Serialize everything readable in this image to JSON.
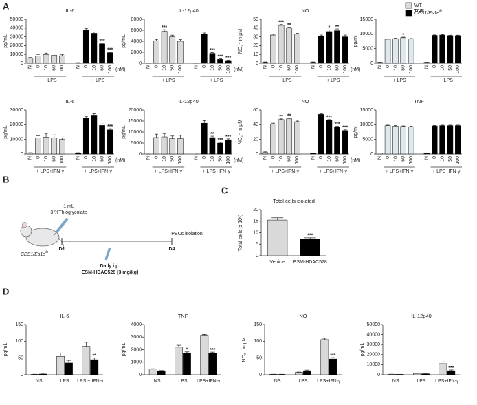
{
  "panel_labels": [
    "A",
    "B",
    "C",
    "D"
  ],
  "legend": [
    {
      "name": "WT",
      "color": "#d9d9d9"
    },
    {
      "name": "CES1/Es1e",
      "name_sup": "lo",
      "color": "#000000"
    }
  ],
  "diagram": {
    "dose": "1 mL",
    "reagent": "3 %Thioglycolate",
    "day_start": "D1",
    "day_end": "D4",
    "endpoint": "PECs isolation",
    "treatment": "Daily i.p.",
    "drug": "ESM-HDAC528 [3 mg/kg]",
    "mouse_label": {
      "text": "CES1/Es1e",
      "sup": "lo"
    }
  },
  "chart_data": [
    {
      "type": "grouped",
      "title": "IL-6",
      "y_label": "pg/mL",
      "ylim": [
        0,
        50000
      ],
      "yticks": [
        0,
        10000,
        20000,
        30000,
        40000,
        50000
      ],
      "categories": [
        "N",
        "0",
        "10",
        "50",
        "100"
      ],
      "unit": "(nM)",
      "group_labels": [
        "+ LPS",
        "+ LPS"
      ],
      "series": [
        {
          "color": "#d9d9d9",
          "values": [
            6000,
            8000,
            10000,
            9000,
            8500
          ],
          "errors": [
            500,
            2000,
            1500,
            1500,
            1500
          ]
        },
        {
          "color": "#000000",
          "values": [
            500,
            38000,
            34000,
            22000,
            12000
          ],
          "errors": [
            200,
            1500,
            1500,
            800,
            600
          ],
          "stars": [
            null,
            null,
            null,
            "***",
            "***"
          ]
        }
      ]
    },
    {
      "type": "grouped",
      "title": "IL-12p40",
      "y_label": "pg/mL",
      "ylim": [
        0,
        8000
      ],
      "yticks": [
        0,
        2000,
        4000,
        6000,
        8000
      ],
      "categories": [
        "N",
        "0",
        "10",
        "50",
        "100"
      ],
      "unit": "(nM)",
      "group_labels": [
        "+ LPS",
        "+ LPS"
      ],
      "series": [
        {
          "color": "#d9d9d9",
          "values": [
            50,
            4100,
            5800,
            4800,
            4000
          ],
          "errors": [
            20,
            250,
            300,
            300,
            300
          ],
          "stars": [
            null,
            null,
            "***",
            null,
            null
          ]
        },
        {
          "color": "#000000",
          "values": [
            50,
            5300,
            1800,
            700,
            500
          ],
          "errors": [
            20,
            200,
            150,
            100,
            80
          ],
          "stars": [
            null,
            null,
            "***",
            "***",
            "***"
          ]
        }
      ]
    },
    {
      "type": "grouped",
      "title": "NO",
      "y_label": "NO₂⁻ in µM",
      "ylim": [
        0,
        50
      ],
      "yticks": [
        0,
        10,
        20,
        30,
        40,
        50
      ],
      "categories": [
        "N",
        "0",
        "10",
        "50",
        "100"
      ],
      "unit": "(nM)",
      "group_labels": [
        "+ LPS",
        "+ LPS"
      ],
      "series": [
        {
          "color": "#d9d9d9",
          "values": [
            1,
            32,
            43,
            40,
            33
          ],
          "errors": [
            0.5,
            1,
            1,
            1,
            1
          ],
          "stars": [
            null,
            null,
            "***",
            "**",
            null
          ]
        },
        {
          "color": "#000000",
          "values": [
            1,
            31,
            36,
            37,
            30
          ],
          "errors": [
            0.5,
            1,
            2,
            2,
            2
          ],
          "stars": [
            null,
            null,
            "*",
            "**",
            null
          ]
        }
      ]
    },
    {
      "type": "grouped",
      "title": "TNF",
      "y_label": "pg/ml",
      "ylim": [
        0,
        15000
      ],
      "yticks": [
        0,
        5000,
        10000,
        15000
      ],
      "categories": [
        "N",
        "0",
        "10",
        "50",
        "100"
      ],
      "group_labels": [
        "+ LPS",
        "+ LPS"
      ],
      "series": [
        {
          "color": "#dfe8ec",
          "values": [
            300,
            8200,
            8400,
            8700,
            8300
          ],
          "errors": [
            50,
            150,
            150,
            200,
            150
          ],
          "stars": [
            null,
            null,
            null,
            "*",
            null
          ]
        },
        {
          "color": "#000000",
          "values": [
            300,
            9500,
            9600,
            9400,
            9400
          ],
          "errors": [
            50,
            150,
            150,
            150,
            150
          ]
        }
      ]
    },
    {
      "type": "grouped",
      "title": "IL-6",
      "y_label": "pg/mL",
      "ylim": [
        0,
        30000
      ],
      "yticks": [
        0,
        10000,
        20000,
        30000
      ],
      "categories": [
        "N",
        "0",
        "10",
        "50",
        "100"
      ],
      "unit": "(nM)",
      "group_labels": [
        "+ LPS+IFN-γ",
        "+ LPS+IFN-γ"
      ],
      "series": [
        {
          "color": "#d9d9d9",
          "values": [
            800,
            11000,
            11500,
            11000,
            10000
          ],
          "errors": [
            100,
            1500,
            2500,
            2000,
            1000
          ]
        },
        {
          "color": "#000000",
          "values": [
            800,
            24500,
            26500,
            19500,
            16500
          ],
          "errors": [
            100,
            1000,
            1000,
            1000,
            800
          ],
          "stars": [
            null,
            null,
            null,
            null,
            "***"
          ]
        }
      ]
    },
    {
      "type": "grouped",
      "title": "IL-12p40",
      "y_label": "pg/mL",
      "ylim": [
        0,
        20000
      ],
      "yticks": [
        0,
        5000,
        10000,
        15000,
        20000
      ],
      "categories": [
        "N",
        "0",
        "10",
        "50",
        "100"
      ],
      "unit": "(nM)",
      "group_labels": [
        "+ LPS+IFN-γ",
        "+ LPS+IFN-γ"
      ],
      "series": [
        {
          "color": "#d9d9d9",
          "values": [
            0,
            7500,
            7800,
            7000,
            7000
          ],
          "errors": [
            0,
            1500,
            1500,
            1200,
            1500
          ]
        },
        {
          "color": "#000000",
          "values": [
            0,
            14000,
            7500,
            5000,
            6500
          ],
          "errors": [
            0,
            1200,
            600,
            400,
            400
          ],
          "stars": [
            null,
            null,
            "**",
            "***",
            "***"
          ]
        }
      ]
    },
    {
      "type": "grouped",
      "title": "NO",
      "y_label": "NO₂⁻ in µM",
      "ylim": [
        0,
        60
      ],
      "yticks": [
        0,
        20,
        40,
        60
      ],
      "categories": [
        "N",
        "0",
        "10",
        "50",
        "100"
      ],
      "unit": "(nM)",
      "group_labels": [
        "+ LPS+IFN-γ",
        "+ LPS+IFN-γ"
      ],
      "series": [
        {
          "color": "#d9d9d9",
          "values": [
            2,
            41,
            47,
            48,
            44
          ],
          "errors": [
            1,
            1,
            1,
            1,
            1
          ],
          "stars": [
            null,
            null,
            "**",
            "**",
            null
          ]
        },
        {
          "color": "#000000",
          "values": [
            1,
            54,
            46,
            37,
            32
          ],
          "errors": [
            0.5,
            1,
            1,
            1,
            1
          ],
          "stars": [
            null,
            null,
            "***",
            "***",
            "***"
          ]
        }
      ]
    },
    {
      "type": "grouped",
      "title": "TNF",
      "y_label": "pg/ml",
      "ylim": [
        0,
        15000
      ],
      "yticks": [
        0,
        5000,
        10000,
        15000
      ],
      "categories": [
        "N",
        "0",
        "10",
        "50",
        "100"
      ],
      "group_labels": [
        "+ LPS+IFN-γ",
        "+ LPS+IFN-γ"
      ],
      "series": [
        {
          "color": "#dfe8ec",
          "values": [
            300,
            9700,
            9500,
            9400,
            9300
          ],
          "errors": [
            50,
            150,
            200,
            200,
            200
          ]
        },
        {
          "color": "#000000",
          "values": [
            300,
            9600,
            9700,
            9700,
            9700
          ],
          "errors": [
            50,
            150,
            150,
            150,
            150
          ]
        }
      ]
    },
    {
      "type": "bar",
      "title": "Total cells isolated",
      "y_label": "Total cells (x 10⁵)",
      "ylim": [
        0,
        20
      ],
      "yticks": [
        0,
        5,
        10,
        15,
        20
      ],
      "categories": [
        "Vehicle",
        "ESM-HDAC528"
      ],
      "colors": [
        "#d9d9d9",
        "#000000"
      ],
      "values": [
        15.5,
        7.2
      ],
      "errors": [
        1,
        0.6
      ],
      "stars": [
        null,
        "***"
      ]
    },
    {
      "type": "paired",
      "title": "IL-6",
      "y_label": "pg/mL",
      "ylim": [
        0,
        150
      ],
      "yticks": [
        0,
        50,
        100,
        150
      ],
      "categories": [
        "NS",
        "LPS",
        "LPS + IFN-γ"
      ],
      "series": [
        {
          "color": "#d9d9d9",
          "values": [
            1,
            55,
            85
          ],
          "errors": [
            0.5,
            10,
            12
          ]
        },
        {
          "color": "#000000",
          "values": [
            2,
            35,
            45
          ],
          "errors": [
            0.5,
            8,
            5
          ],
          "stars": [
            null,
            null,
            "**"
          ]
        }
      ]
    },
    {
      "type": "paired",
      "title": "TNF",
      "y_label": "pg/mL",
      "ylim": [
        0,
        4000
      ],
      "yticks": [
        0,
        1000,
        2000,
        3000,
        4000
      ],
      "categories": [
        "NS",
        "LPS",
        "LPS+IFN-γ"
      ],
      "series": [
        {
          "color": "#d9d9d9",
          "values": [
            450,
            2200,
            3150
          ],
          "errors": [
            30,
            150,
            60
          ]
        },
        {
          "color": "#000000",
          "values": [
            320,
            1700,
            1700
          ],
          "errors": [
            20,
            120,
            100
          ],
          "stars": [
            null,
            "*",
            "***"
          ]
        }
      ]
    },
    {
      "type": "paired",
      "title": "NO",
      "y_label": "NO₂⁻ in µM",
      "ylim": [
        0,
        150
      ],
      "yticks": [
        0,
        50,
        100,
        150
      ],
      "categories": [
        "NS",
        "LPS",
        "LPS+IFN-γ"
      ],
      "series": [
        {
          "color": "#d9d9d9",
          "values": [
            1,
            7,
            105
          ],
          "errors": [
            0.5,
            1,
            4
          ]
        },
        {
          "color": "#000000",
          "values": [
            1,
            12,
            47
          ],
          "errors": [
            0.5,
            2,
            4
          ],
          "stars": [
            null,
            null,
            "***"
          ]
        }
      ]
    },
    {
      "type": "paired",
      "title": "IL-12p40",
      "y_label": "pg/mL",
      "ylim": [
        0,
        50000
      ],
      "yticks": [
        0,
        10000,
        20000,
        30000,
        40000,
        50000
      ],
      "categories": [
        "NS",
        "LPS",
        "LPS+IFN-γ"
      ],
      "series": [
        {
          "color": "#d9d9d9",
          "values": [
            500,
            1300,
            11000
          ],
          "errors": [
            50,
            200,
            1800
          ]
        },
        {
          "color": "#000000",
          "values": [
            400,
            900,
            4000
          ],
          "errors": [
            50,
            100,
            800
          ],
          "stars": [
            null,
            null,
            "***"
          ]
        }
      ]
    }
  ]
}
